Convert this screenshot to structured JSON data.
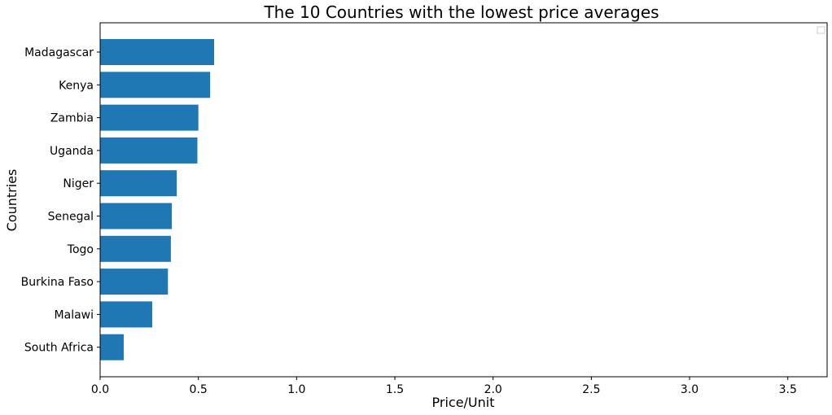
{
  "chart_data": {
    "type": "bar",
    "orientation": "horizontal",
    "title": "The 10 Countries with the lowest price averages",
    "xlabel": "Price/Unit",
    "ylabel": "Countries",
    "categories": [
      "Madagascar",
      "Kenya",
      "Zambia",
      "Uganda",
      "Niger",
      "Senegal",
      "Togo",
      "Burkina Faso",
      "Malawi",
      "South Africa"
    ],
    "values": [
      0.58,
      0.56,
      0.5,
      0.495,
      0.39,
      0.365,
      0.36,
      0.345,
      0.265,
      0.12
    ],
    "xlim": [
      0,
      3.7
    ],
    "xticks": [
      "0.0",
      "0.5",
      "1.0",
      "1.5",
      "2.0",
      "2.5",
      "3.0",
      "3.5"
    ],
    "grid": false,
    "legend": "top-right",
    "bar_color": "#1f77b4"
  }
}
